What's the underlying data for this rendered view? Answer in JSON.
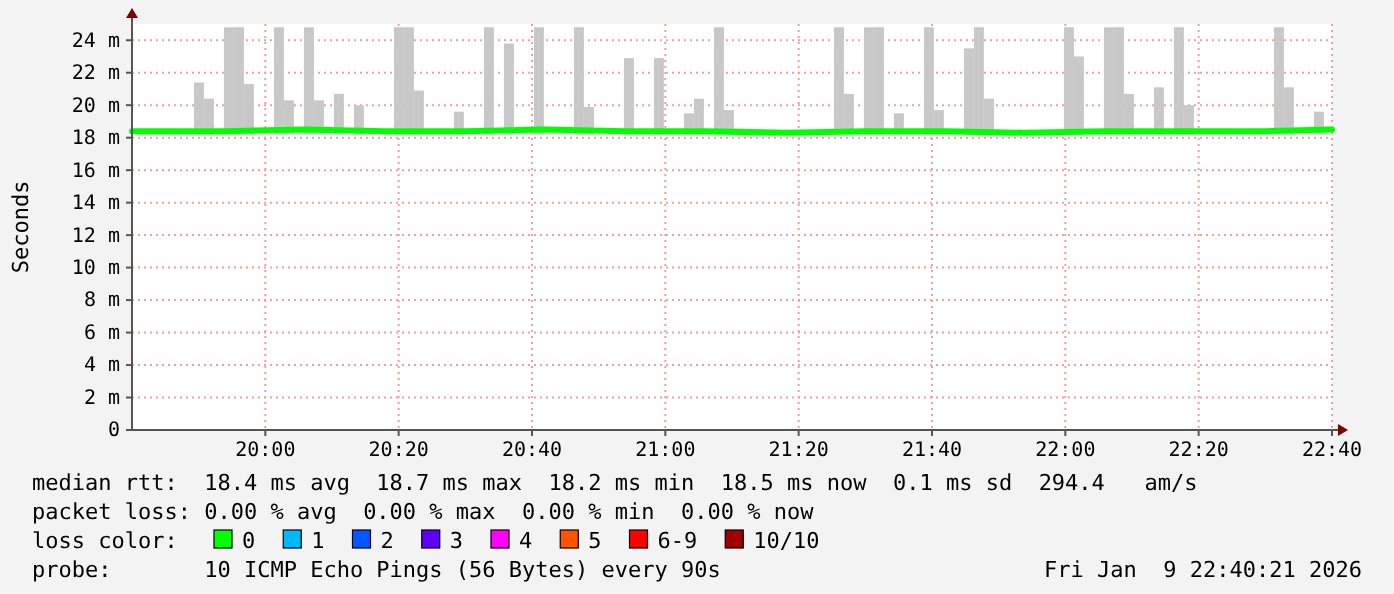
{
  "chart_data": {
    "type": "line",
    "ylabel": "Seconds",
    "legend_title": "loss color:",
    "legend": "bottom",
    "grid": true,
    "xlim": [
      19.6667,
      22.6667
    ],
    "xticks": [
      {
        "value": 20,
        "label": "20:00"
      },
      {
        "value": 20.3333,
        "label": "20:20"
      },
      {
        "value": 20.6667,
        "label": "20:40"
      },
      {
        "value": 21,
        "label": "21:00"
      },
      {
        "value": 21.3333,
        "label": "21:20"
      },
      {
        "value": 21.6667,
        "label": "21:40"
      },
      {
        "value": 22,
        "label": "22:00"
      },
      {
        "value": 22.3333,
        "label": "22:20"
      },
      {
        "value": 22.6667,
        "label": "22:40"
      }
    ],
    "ylim": [
      0,
      25
    ],
    "yticks": [
      0,
      {
        "value": 2,
        "label": "2 m"
      },
      {
        "value": 4,
        "label": "4 m"
      },
      {
        "value": 6,
        "label": "6 m"
      },
      {
        "value": 8,
        "label": "8 m"
      },
      {
        "value": 10,
        "label": "10 m"
      },
      {
        "value": 12,
        "label": "12 m"
      },
      {
        "value": 14,
        "label": "14 m"
      },
      {
        "value": 16,
        "label": "16 m"
      },
      {
        "value": 18,
        "label": "18 m"
      },
      {
        "value": 20,
        "label": "20 m"
      },
      {
        "value": 22,
        "label": "22 m"
      },
      {
        "value": 24,
        "label": "24 m"
      }
    ],
    "series": [
      {
        "type": "bar",
        "color": "#c8c8c8",
        "x": [
          19.834,
          19.859,
          19.909,
          19.934,
          19.959,
          20.034,
          20.059,
          20.109,
          20.134,
          20.184,
          20.234,
          20.334,
          20.359,
          20.384,
          20.484,
          20.559,
          20.609,
          20.684,
          20.784,
          20.809,
          20.909,
          20.984,
          21.059,
          21.084,
          21.134,
          21.159,
          21.434,
          21.459,
          21.509,
          21.534,
          21.584,
          21.659,
          21.684,
          21.759,
          21.784,
          21.809,
          22.009,
          22.034,
          22.109,
          22.134,
          22.159,
          22.234,
          22.284,
          22.309,
          22.534,
          22.559,
          22.634
        ],
        "base": [
          18.2,
          18.2,
          18.2,
          18.2,
          18.2,
          18.2,
          18.2,
          18.2,
          18.2,
          18.2,
          18.2,
          18.2,
          18.2,
          18.2,
          18.2,
          18.2,
          18.2,
          18.2,
          18.2,
          18.2,
          18.2,
          18.2,
          18.2,
          18.2,
          18.2,
          18.2,
          18.2,
          18.2,
          18.2,
          18.2,
          18.2,
          18.2,
          18.2,
          18.2,
          18.2,
          18.2,
          18.2,
          18.2,
          18.2,
          18.2,
          18.2,
          18.2,
          18.2,
          18.2,
          18.2,
          18.2,
          18.2
        ],
        "values": [
          3.2,
          2.2,
          6.6,
          6.6,
          3.1,
          6.6,
          2.1,
          6.6,
          2.1,
          2.5,
          1.8,
          6.6,
          6.6,
          2.7,
          1.4,
          6.6,
          5.6,
          6.6,
          6.6,
          1.7,
          4.7,
          4.7,
          1.3,
          2.2,
          6.6,
          1.5,
          6.6,
          2.5,
          6.6,
          6.6,
          1.3,
          6.6,
          1.5,
          5.3,
          6.6,
          2.2,
          6.6,
          4.8,
          6.6,
          6.6,
          2.5,
          2.9,
          6.6,
          1.8,
          6.6,
          2.9,
          1.4
        ]
      },
      {
        "name": "0",
        "color": "#00ff00",
        "x": [
          19.6667,
          19.9,
          20.1,
          20.3,
          20.5,
          20.7,
          20.9,
          21.1,
          21.3,
          21.5,
          21.7,
          21.9,
          22.1,
          22.3,
          22.5,
          22.6667
        ],
        "values": [
          18.4,
          18.4,
          18.5,
          18.4,
          18.4,
          18.5,
          18.4,
          18.4,
          18.3,
          18.4,
          18.4,
          18.3,
          18.4,
          18.4,
          18.4,
          18.5
        ]
      },
      {
        "name": "1",
        "color": "#00b8ff"
      },
      {
        "name": "2",
        "color": "#0059ff"
      },
      {
        "name": "3",
        "color": "#5e00ff"
      },
      {
        "name": "4",
        "color": "#ff00ff"
      },
      {
        "name": "5",
        "color": "#ff5500"
      },
      {
        "name": "6-9",
        "color": "#ff0000"
      },
      {
        "name": "10/10",
        "color": "#a10000"
      }
    ],
    "annotations": [
      "median rtt:  18.4 ms avg  18.7 ms max  18.2 ms min  18.5 ms now  0.1 ms sd  294.4   am/s",
      "packet loss: 0.00 % avg  0.00 % max  0.00 % min  0.00 % now",
      "probe:       10 ICMP Echo Pings (56 Bytes) every 90s",
      "Fri Jan  9 22:40:21 2026"
    ]
  }
}
